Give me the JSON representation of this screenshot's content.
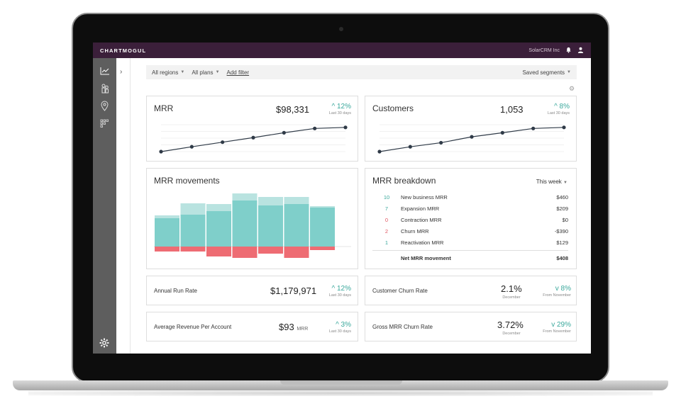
{
  "app": {
    "logo": "CHARTMOGUL",
    "company": "SolarCRM Inc"
  },
  "icons": {
    "bell": "bell-icon",
    "user": "user-icon",
    "chart": "line-chart-icon",
    "people": "people-icon",
    "location": "location-pin-icon",
    "grid": "grid-icon",
    "settings": "gear-icon",
    "expand": "chevron-right-icon"
  },
  "filters": {
    "regions": "All regions",
    "plans": "All plans",
    "add": "Add filter",
    "segments": "Saved segments"
  },
  "mrr": {
    "title": "MRR",
    "value": "$98,331",
    "delta": "^ 12%",
    "period": "Last 30 days",
    "trend": [
      0,
      0.18,
      0.35,
      0.52,
      0.7,
      0.86,
      0.9
    ]
  },
  "customers": {
    "title": "Customers",
    "value": "1,053",
    "delta": "^ 8%",
    "period": "Last 30 days",
    "trend": [
      0,
      0.18,
      0.33,
      0.55,
      0.7,
      0.86,
      0.9
    ]
  },
  "movements": {
    "title": "MRR movements",
    "bars": [
      {
        "base": 40,
        "light": 4,
        "neg": 7
      },
      {
        "base": 45,
        "light": 16,
        "neg": 7
      },
      {
        "base": 50,
        "light": 10,
        "neg": 14
      },
      {
        "base": 65,
        "light": 10,
        "neg": 16
      },
      {
        "base": 58,
        "light": 12,
        "neg": 10
      },
      {
        "base": 60,
        "light": 10,
        "neg": 16
      },
      {
        "base": 55,
        "light": 2,
        "neg": 5
      }
    ],
    "colors": {
      "base": "#7fcfca",
      "light": "#b9e3e0",
      "neg": "#ee6c73"
    }
  },
  "breakdown": {
    "title": "MRR breakdown",
    "range": "This week",
    "rows": [
      {
        "count": "10",
        "label": "New business MRR",
        "value": "$460",
        "color": "#3aa89c"
      },
      {
        "count": "7",
        "label": "Expansion MRR",
        "value": "$209",
        "color": "#3aa89c"
      },
      {
        "count": "0",
        "label": "Contraction MRR",
        "value": "$0",
        "color": "#e05560"
      },
      {
        "count": "2",
        "label": "Churn MRR",
        "value": "-$390",
        "color": "#e05560"
      },
      {
        "count": "1",
        "label": "Reactivation MRR",
        "value": "$129",
        "color": "#3aa89c"
      }
    ],
    "total_label": "Net MRR movement",
    "total_value": "$408"
  },
  "arr": {
    "label": "Annual Run Rate",
    "value": "$1,179,971",
    "delta": "^ 12%",
    "period": "Last 30 days"
  },
  "arpa": {
    "label": "Average Revenue Per Account",
    "value": "$93",
    "unit": "MRR",
    "delta": "^ 3%",
    "period": "Last 30 days"
  },
  "churn": {
    "label": "Customer Churn Rate",
    "value": "2.1%",
    "month": "December",
    "delta": "v 8%",
    "period": "From November"
  },
  "gross": {
    "label": "Gross MRR Churn Rate",
    "value": "3.72%",
    "month": "December",
    "delta": "v 29%",
    "period": "From November"
  },
  "colors": {
    "accent": "#3aa89c",
    "topbar": "#3b1f3a",
    "negative": "#ee6c73"
  }
}
